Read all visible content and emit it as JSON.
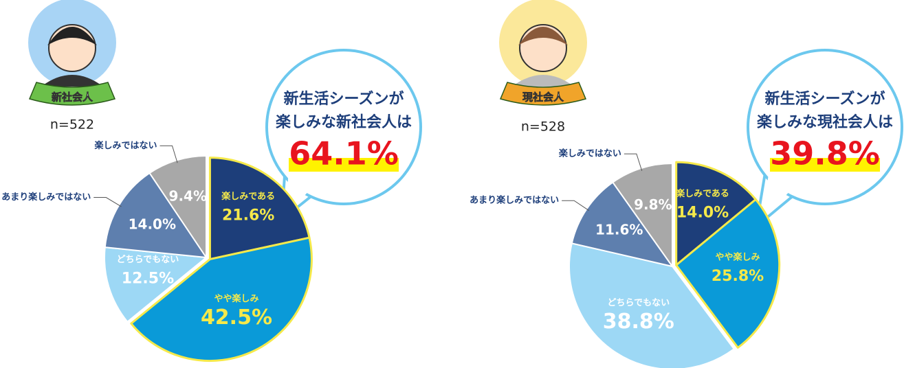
{
  "chart_data": [
    {
      "type": "pie",
      "badge": "新社会人",
      "n": "n=522",
      "callout": [
        "新生活シーズンが",
        "楽しみな新社会人は"
      ],
      "highlight": "64.1%",
      "categories": [
        "楽しみである",
        "やや楽しみ",
        "どちらでもない",
        "あまり楽しみではない",
        "楽しみではない"
      ],
      "values": [
        21.6,
        42.5,
        12.5,
        14.0,
        9.4
      ],
      "value_labels": [
        "21.6%",
        "42.5%",
        "12.5%",
        "14.0%",
        "9.4%"
      ],
      "colors": [
        "#1d3e7a",
        "#0a9ad8",
        "#9dd8f5",
        "#5e7fae",
        "#a8a8a8"
      ]
    },
    {
      "type": "pie",
      "badge": "現社会人",
      "n": "n=528",
      "callout": [
        "新生活シーズンが",
        "楽しみな現社会人は"
      ],
      "highlight": "39.8%",
      "categories": [
        "楽しみである",
        "やや楽しみ",
        "どちらでもない",
        "あまり楽しみではない",
        "楽しみではない"
      ],
      "values": [
        14.0,
        25.8,
        38.8,
        11.6,
        9.8
      ],
      "value_labels": [
        "14.0%",
        "25.8%",
        "38.8%",
        "11.6%",
        "9.8%"
      ],
      "colors": [
        "#1d3e7a",
        "#0a9ad8",
        "#9dd8f5",
        "#5e7fae",
        "#a8a8a8"
      ]
    }
  ]
}
